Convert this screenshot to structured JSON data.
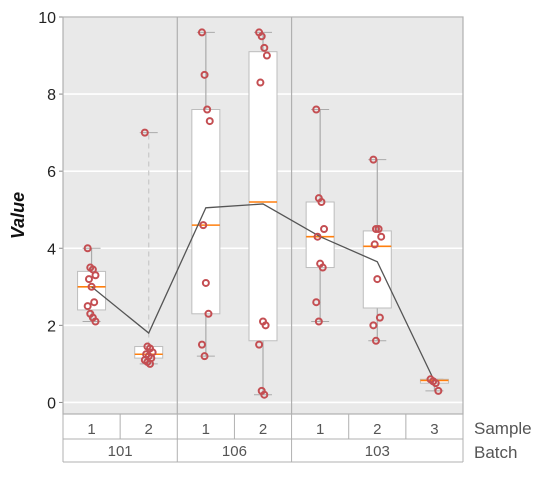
{
  "chart_data": {
    "type": "box",
    "ylabel": "Value",
    "ylim": [
      -0.3,
      10
    ],
    "yticks": [
      0,
      2,
      4,
      6,
      8,
      10
    ],
    "grid": "horizontal",
    "row_labels": [
      "Sample",
      "Batch"
    ],
    "groups": [
      {
        "batch": "101",
        "samples": [
          {
            "sample": "1",
            "q1": 2.4,
            "median": 3.0,
            "q3": 3.4,
            "whisker_low": 2.1,
            "whisker_high": 4.0,
            "mean": 3.0,
            "points": [
              4.0,
              3.5,
              3.45,
              3.3,
              3.2,
              3.0,
              2.6,
              2.5,
              2.3,
              2.2,
              2.1
            ]
          },
          {
            "sample": "2",
            "q1": 1.15,
            "median": 1.25,
            "q3": 1.45,
            "whisker_low": 1.0,
            "whisker_high": 7.0,
            "mean": 1.8,
            "whisker_dashed": true,
            "points": [
              7.0,
              1.45,
              1.4,
              1.3,
              1.25,
              1.2,
              1.15,
              1.1,
              1.05,
              1.0
            ]
          }
        ]
      },
      {
        "batch": "106",
        "samples": [
          {
            "sample": "1",
            "q1": 2.3,
            "median": 4.6,
            "q3": 7.6,
            "whisker_low": 1.2,
            "whisker_high": 9.6,
            "mean": 5.05,
            "points": [
              9.6,
              8.5,
              7.6,
              7.3,
              4.6,
              3.1,
              2.3,
              1.5,
              1.2
            ]
          },
          {
            "sample": "2",
            "q1": 1.6,
            "median": 5.2,
            "q3": 9.1,
            "whisker_low": 0.2,
            "whisker_high": 9.6,
            "mean": 5.15,
            "points": [
              9.6,
              9.5,
              9.2,
              9.0,
              8.3,
              2.1,
              2.0,
              1.5,
              0.3,
              0.2
            ]
          }
        ]
      },
      {
        "batch": "103",
        "samples": [
          {
            "sample": "1",
            "q1": 3.5,
            "median": 4.3,
            "q3": 5.2,
            "whisker_low": 2.1,
            "whisker_high": 7.6,
            "mean": 4.3,
            "points": [
              7.6,
              5.3,
              5.2,
              4.5,
              4.3,
              3.6,
              3.5,
              2.6,
              2.1
            ]
          },
          {
            "sample": "2",
            "q1": 2.45,
            "median": 4.05,
            "q3": 4.45,
            "whisker_low": 1.6,
            "whisker_high": 6.3,
            "mean": 3.65,
            "points": [
              6.3,
              4.5,
              4.5,
              4.3,
              4.1,
              3.2,
              2.2,
              2.0,
              1.6
            ]
          },
          {
            "sample": "3",
            "q1": 0.5,
            "median": 0.57,
            "q3": 0.6,
            "whisker_low": 0.3,
            "whisker_high": 0.6,
            "mean": 0.55,
            "points": [
              0.6,
              0.55,
              0.5,
              0.3
            ]
          }
        ]
      }
    ]
  },
  "colors": {
    "panel_bg": "#e9e9e9",
    "box_fill": "#ffffff",
    "box_edge": "#bdbdbd",
    "whisker": "#aaaaaa",
    "median": "#ff7f0e",
    "point": "#c44e52",
    "mean_line": "#555555",
    "text": "#555555"
  }
}
